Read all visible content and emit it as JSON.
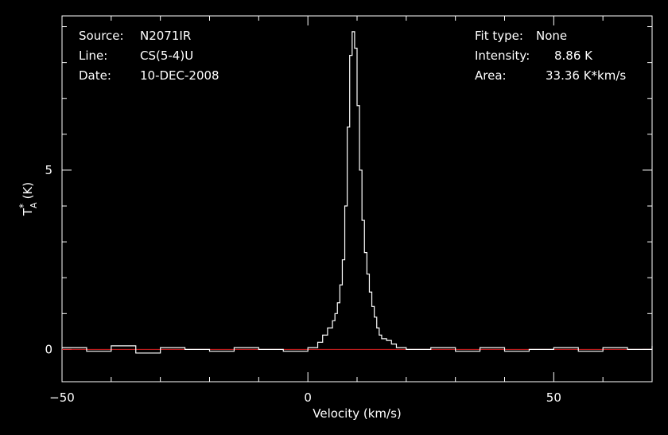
{
  "info": {
    "source_label": "Source:",
    "source_value": "N2071IR",
    "line_label": "Line:",
    "line_value": "CS(5-4)U",
    "date_label": "Date:",
    "date_value": "10-DEC-2008",
    "fit_label": "Fit type:",
    "fit_value": "None",
    "intensity_label": "Intensity:",
    "intensity_value": "8.86 K",
    "area_label": "Area:",
    "area_value": "33.36 K*km/s"
  },
  "colors": {
    "background": "#000000",
    "axes": "#ffffff",
    "spectrum": "#ffffff",
    "baseline": "#d42020"
  },
  "chart_data": {
    "type": "line",
    "xlabel": "Velocity (km/s)",
    "ylabel_main": "T",
    "ylabel_sup": "*",
    "ylabel_sub": "A",
    "ylabel_unit": "(K)",
    "xlim": [
      -50,
      70
    ],
    "ylim": [
      -0.9,
      9.3
    ],
    "xticks": [
      -50,
      0,
      50
    ],
    "xtick_labels": [
      "−50",
      "0",
      "50"
    ],
    "yticks": [
      0,
      5
    ],
    "ytick_labels": [
      "0",
      "5"
    ],
    "baseline": {
      "y": 0,
      "x_range": [
        -50,
        70
      ]
    },
    "series": [
      {
        "x": [
          -50,
          -45,
          -40,
          -35,
          -30,
          -25,
          -20,
          -15,
          -10,
          -5,
          0,
          2,
          3,
          4,
          5,
          5.5,
          6,
          6.5,
          7,
          7.5,
          8,
          8.5,
          9,
          9.5,
          10,
          10.5,
          11,
          11.5,
          12,
          12.5,
          13,
          13.5,
          14,
          14.5,
          15,
          16,
          17,
          18,
          20,
          25,
          30,
          35,
          40,
          45,
          50,
          55,
          60,
          65,
          70
        ],
        "y": [
          0.05,
          -0.05,
          0.1,
          -0.1,
          0.05,
          0.0,
          -0.05,
          0.05,
          0.0,
          -0.05,
          0.05,
          0.2,
          0.4,
          0.6,
          0.8,
          1.0,
          1.3,
          1.8,
          2.5,
          4.0,
          6.2,
          8.2,
          8.86,
          8.4,
          6.8,
          5.0,
          3.6,
          2.7,
          2.1,
          1.6,
          1.2,
          0.9,
          0.6,
          0.4,
          0.3,
          0.25,
          0.15,
          0.05,
          0.0,
          0.05,
          -0.05,
          0.05,
          -0.05,
          0.0,
          0.05,
          -0.05,
          0.05,
          0.0,
          0.1
        ]
      }
    ]
  }
}
